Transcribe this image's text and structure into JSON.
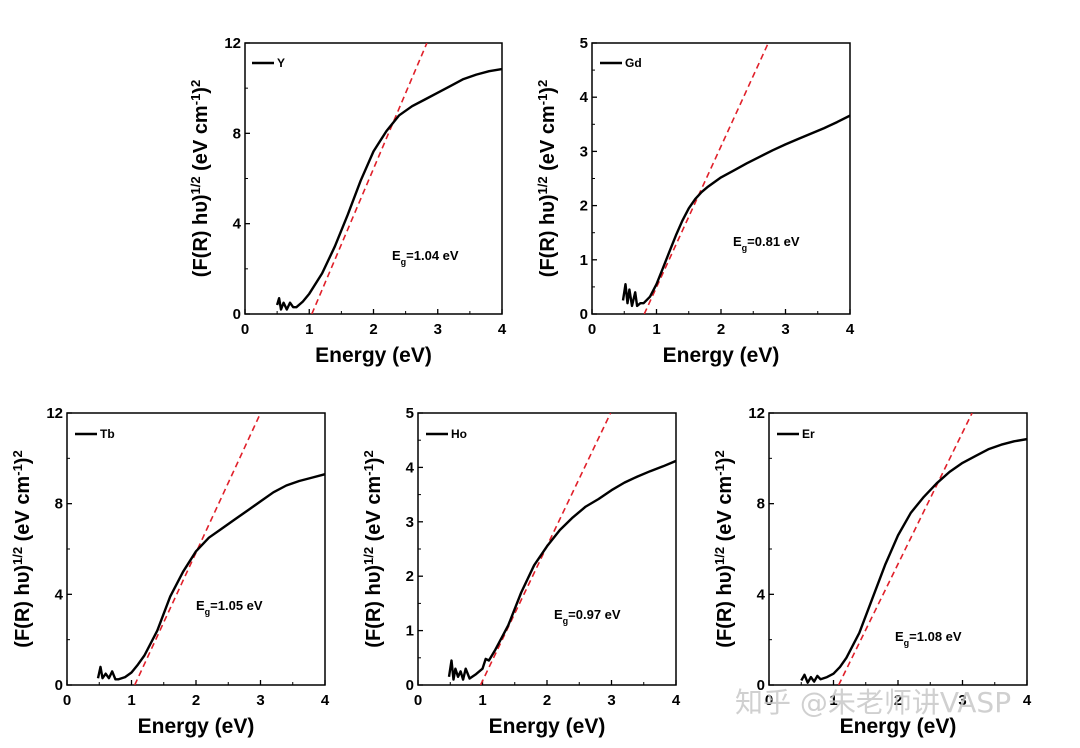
{
  "chart_data": [
    {
      "type": "line",
      "panel": "Y",
      "legend": "Y",
      "annotation": {
        "label": "E",
        "sub": "g",
        "value": "=1.04 eV"
      },
      "xlabel": "Energy (eV)",
      "ylabel": "(F(R) hυ)1/2 (eV cm-1)2",
      "xlim": [
        0,
        4
      ],
      "ylim": [
        0,
        12
      ],
      "xticks": [
        0,
        1,
        2,
        3,
        4
      ],
      "yticks": [
        0,
        4,
        8,
        12
      ],
      "series": [
        {
          "name": "Y",
          "x": [
            0.5,
            0.53,
            0.56,
            0.6,
            0.65,
            0.7,
            0.75,
            0.8,
            0.9,
            1.0,
            1.2,
            1.4,
            1.6,
            1.8,
            2.0,
            2.2,
            2.4,
            2.6,
            2.8,
            3.0,
            3.2,
            3.4,
            3.6,
            3.8,
            4.0
          ],
          "y": [
            0.4,
            0.7,
            0.2,
            0.5,
            0.2,
            0.5,
            0.3,
            0.3,
            0.55,
            0.9,
            1.8,
            3.0,
            4.4,
            5.9,
            7.2,
            8.1,
            8.8,
            9.2,
            9.5,
            9.8,
            10.1,
            10.4,
            10.6,
            10.75,
            10.85
          ]
        }
      ],
      "fit_line": {
        "x0": 1.04,
        "slope": 6.7,
        "color": "#e0202a"
      }
    },
    {
      "type": "line",
      "panel": "Gd",
      "legend": "Gd",
      "annotation": {
        "label": "E",
        "sub": "g",
        "value": "=0.81 eV"
      },
      "xlabel": "Energy (eV)",
      "ylabel": "(F(R) hυ)1/2 (eV cm-1)2",
      "xlim": [
        0,
        4
      ],
      "ylim": [
        0,
        5
      ],
      "xticks": [
        0,
        1,
        2,
        3,
        4
      ],
      "yticks": [
        0,
        1,
        2,
        3,
        4,
        5
      ],
      "series": [
        {
          "name": "Gd",
          "x": [
            0.48,
            0.52,
            0.55,
            0.58,
            0.62,
            0.67,
            0.7,
            0.75,
            0.8,
            0.9,
            1.0,
            1.1,
            1.2,
            1.3,
            1.4,
            1.5,
            1.6,
            1.7,
            1.8,
            2.0,
            2.2,
            2.4,
            2.6,
            2.8,
            3.0,
            3.2,
            3.4,
            3.6,
            3.8,
            4.0
          ],
          "y": [
            0.25,
            0.55,
            0.2,
            0.45,
            0.15,
            0.4,
            0.15,
            0.2,
            0.2,
            0.32,
            0.55,
            0.85,
            1.15,
            1.45,
            1.72,
            1.95,
            2.12,
            2.25,
            2.35,
            2.52,
            2.65,
            2.78,
            2.9,
            3.02,
            3.13,
            3.23,
            3.33,
            3.43,
            3.54,
            3.66
          ]
        }
      ],
      "fit_line": {
        "x0": 0.81,
        "slope": 2.6,
        "color": "#e0202a"
      }
    },
    {
      "type": "line",
      "panel": "Tb",
      "legend": "Tb",
      "annotation": {
        "label": "E",
        "sub": "g",
        "value": "=1.05 eV"
      },
      "xlabel": "Energy (eV)",
      "ylabel": "(F(R) hυ)1/2 (eV cm-1)2",
      "xlim": [
        0,
        4
      ],
      "ylim": [
        0,
        12
      ],
      "xticks": [
        0,
        1,
        2,
        3,
        4
      ],
      "yticks": [
        0,
        4,
        8,
        12
      ],
      "series": [
        {
          "name": "Tb",
          "x": [
            0.48,
            0.52,
            0.55,
            0.6,
            0.65,
            0.7,
            0.75,
            0.8,
            0.9,
            1.0,
            1.1,
            1.2,
            1.4,
            1.6,
            1.8,
            2.0,
            2.2,
            2.4,
            2.6,
            2.8,
            3.0,
            3.2,
            3.4,
            3.6,
            3.8,
            4.0
          ],
          "y": [
            0.3,
            0.8,
            0.3,
            0.5,
            0.3,
            0.6,
            0.25,
            0.25,
            0.35,
            0.55,
            0.9,
            1.3,
            2.4,
            3.9,
            5.0,
            5.9,
            6.5,
            6.9,
            7.3,
            7.7,
            8.1,
            8.5,
            8.8,
            9.0,
            9.15,
            9.3
          ]
        }
      ],
      "fit_line": {
        "x0": 1.05,
        "slope": 6.15,
        "color": "#e0202a"
      }
    },
    {
      "type": "line",
      "panel": "Ho",
      "legend": "Ho",
      "annotation": {
        "label": "E",
        "sub": "g",
        "value": "=0.97 eV"
      },
      "xlabel": "Energy (eV)",
      "ylabel": "(F(R) hυ)1/2 (eV cm-1)2",
      "xlim": [
        0,
        4
      ],
      "ylim": [
        0,
        5
      ],
      "xticks": [
        0,
        1,
        2,
        3,
        4
      ],
      "yticks": [
        0,
        1,
        2,
        3,
        4,
        5
      ],
      "series": [
        {
          "name": "Ho",
          "x": [
            0.48,
            0.52,
            0.55,
            0.58,
            0.62,
            0.66,
            0.7,
            0.74,
            0.8,
            0.9,
            1.0,
            1.05,
            1.1,
            1.2,
            1.4,
            1.6,
            1.8,
            2.0,
            2.2,
            2.4,
            2.6,
            2.8,
            3.0,
            3.2,
            3.4,
            3.6,
            3.8,
            4.0
          ],
          "y": [
            0.15,
            0.45,
            0.1,
            0.3,
            0.15,
            0.25,
            0.1,
            0.3,
            0.12,
            0.2,
            0.3,
            0.48,
            0.45,
            0.65,
            1.1,
            1.7,
            2.2,
            2.55,
            2.85,
            3.08,
            3.28,
            3.42,
            3.58,
            3.72,
            3.83,
            3.93,
            4.02,
            4.12
          ]
        }
      ],
      "fit_line": {
        "x0": 0.97,
        "slope": 2.48,
        "color": "#e0202a"
      }
    },
    {
      "type": "line",
      "panel": "Er",
      "legend": "Er",
      "annotation": {
        "label": "E",
        "sub": "g",
        "value": "=1.08 eV"
      },
      "xlabel": "Energy (eV)",
      "ylabel": "(F(R) hυ)1/2 (eV cm-1)2",
      "xlim": [
        0,
        4
      ],
      "ylim": [
        0,
        12
      ],
      "xticks": [
        0,
        1,
        2,
        3,
        4
      ],
      "yticks": [
        0,
        4,
        8,
        12
      ],
      "series": [
        {
          "name": "Er",
          "x": [
            0.5,
            0.55,
            0.6,
            0.65,
            0.7,
            0.75,
            0.8,
            0.9,
            1.0,
            1.1,
            1.2,
            1.4,
            1.6,
            1.8,
            2.0,
            2.2,
            2.4,
            2.6,
            2.8,
            3.0,
            3.2,
            3.4,
            3.6,
            3.8,
            4.0
          ],
          "y": [
            0.2,
            0.45,
            0.1,
            0.35,
            0.15,
            0.4,
            0.25,
            0.35,
            0.5,
            0.8,
            1.2,
            2.3,
            3.8,
            5.3,
            6.6,
            7.6,
            8.3,
            8.9,
            9.4,
            9.8,
            10.1,
            10.4,
            10.6,
            10.75,
            10.85
          ]
        }
      ],
      "fit_line": {
        "x0": 1.08,
        "slope": 5.8,
        "color": "#e0202a"
      }
    }
  ],
  "watermark": "知乎 @朱老师讲VASP"
}
